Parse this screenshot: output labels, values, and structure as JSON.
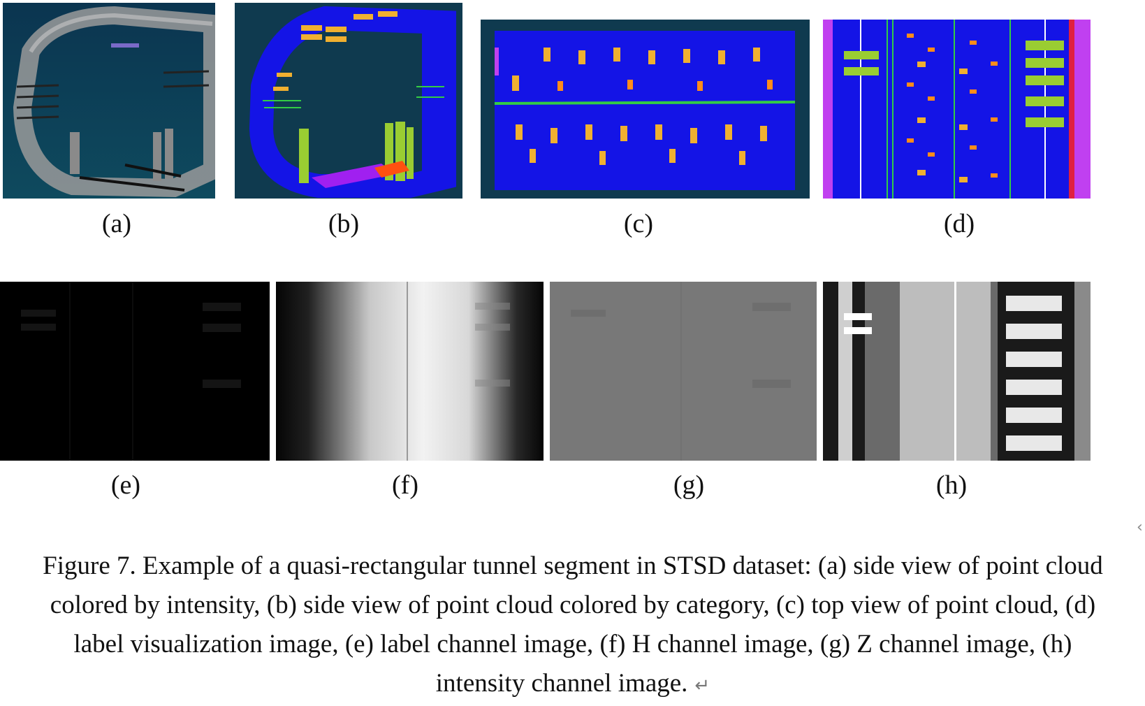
{
  "panels": [
    {
      "label": "(a)",
      "icon": "tunnel-intensity-side-view"
    },
    {
      "label": "(b)",
      "icon": "tunnel-category-side-view"
    },
    {
      "label": "(c)",
      "icon": "tunnel-top-view"
    },
    {
      "label": "(d)",
      "icon": "label-visualization"
    },
    {
      "label": "(e)",
      "icon": "label-channel"
    },
    {
      "label": "(f)",
      "icon": "h-channel"
    },
    {
      "label": "(g)",
      "icon": "z-channel"
    },
    {
      "label": "(h)",
      "icon": "intensity-channel"
    }
  ],
  "caption": "Figure 7. Example of a quasi-rectangular tunnel segment in STSD dataset: (a) side view of point cloud colored by intensity, (b) side view of point cloud colored by category, (c) top view of point cloud, (d) label visualization image, (e) label channel image, (f) H channel image, (g) Z channel image, (h) intensity channel image.",
  "colors": {
    "background_dark": "#0f3a4f",
    "category_blue": "#1010ee",
    "equipment_yellow": "#f0b030",
    "equipment_orange": "#ff8c1a",
    "pipe_green": "#33cc44",
    "person_lime": "#9acd32",
    "rail_magenta": "#c040f0"
  }
}
